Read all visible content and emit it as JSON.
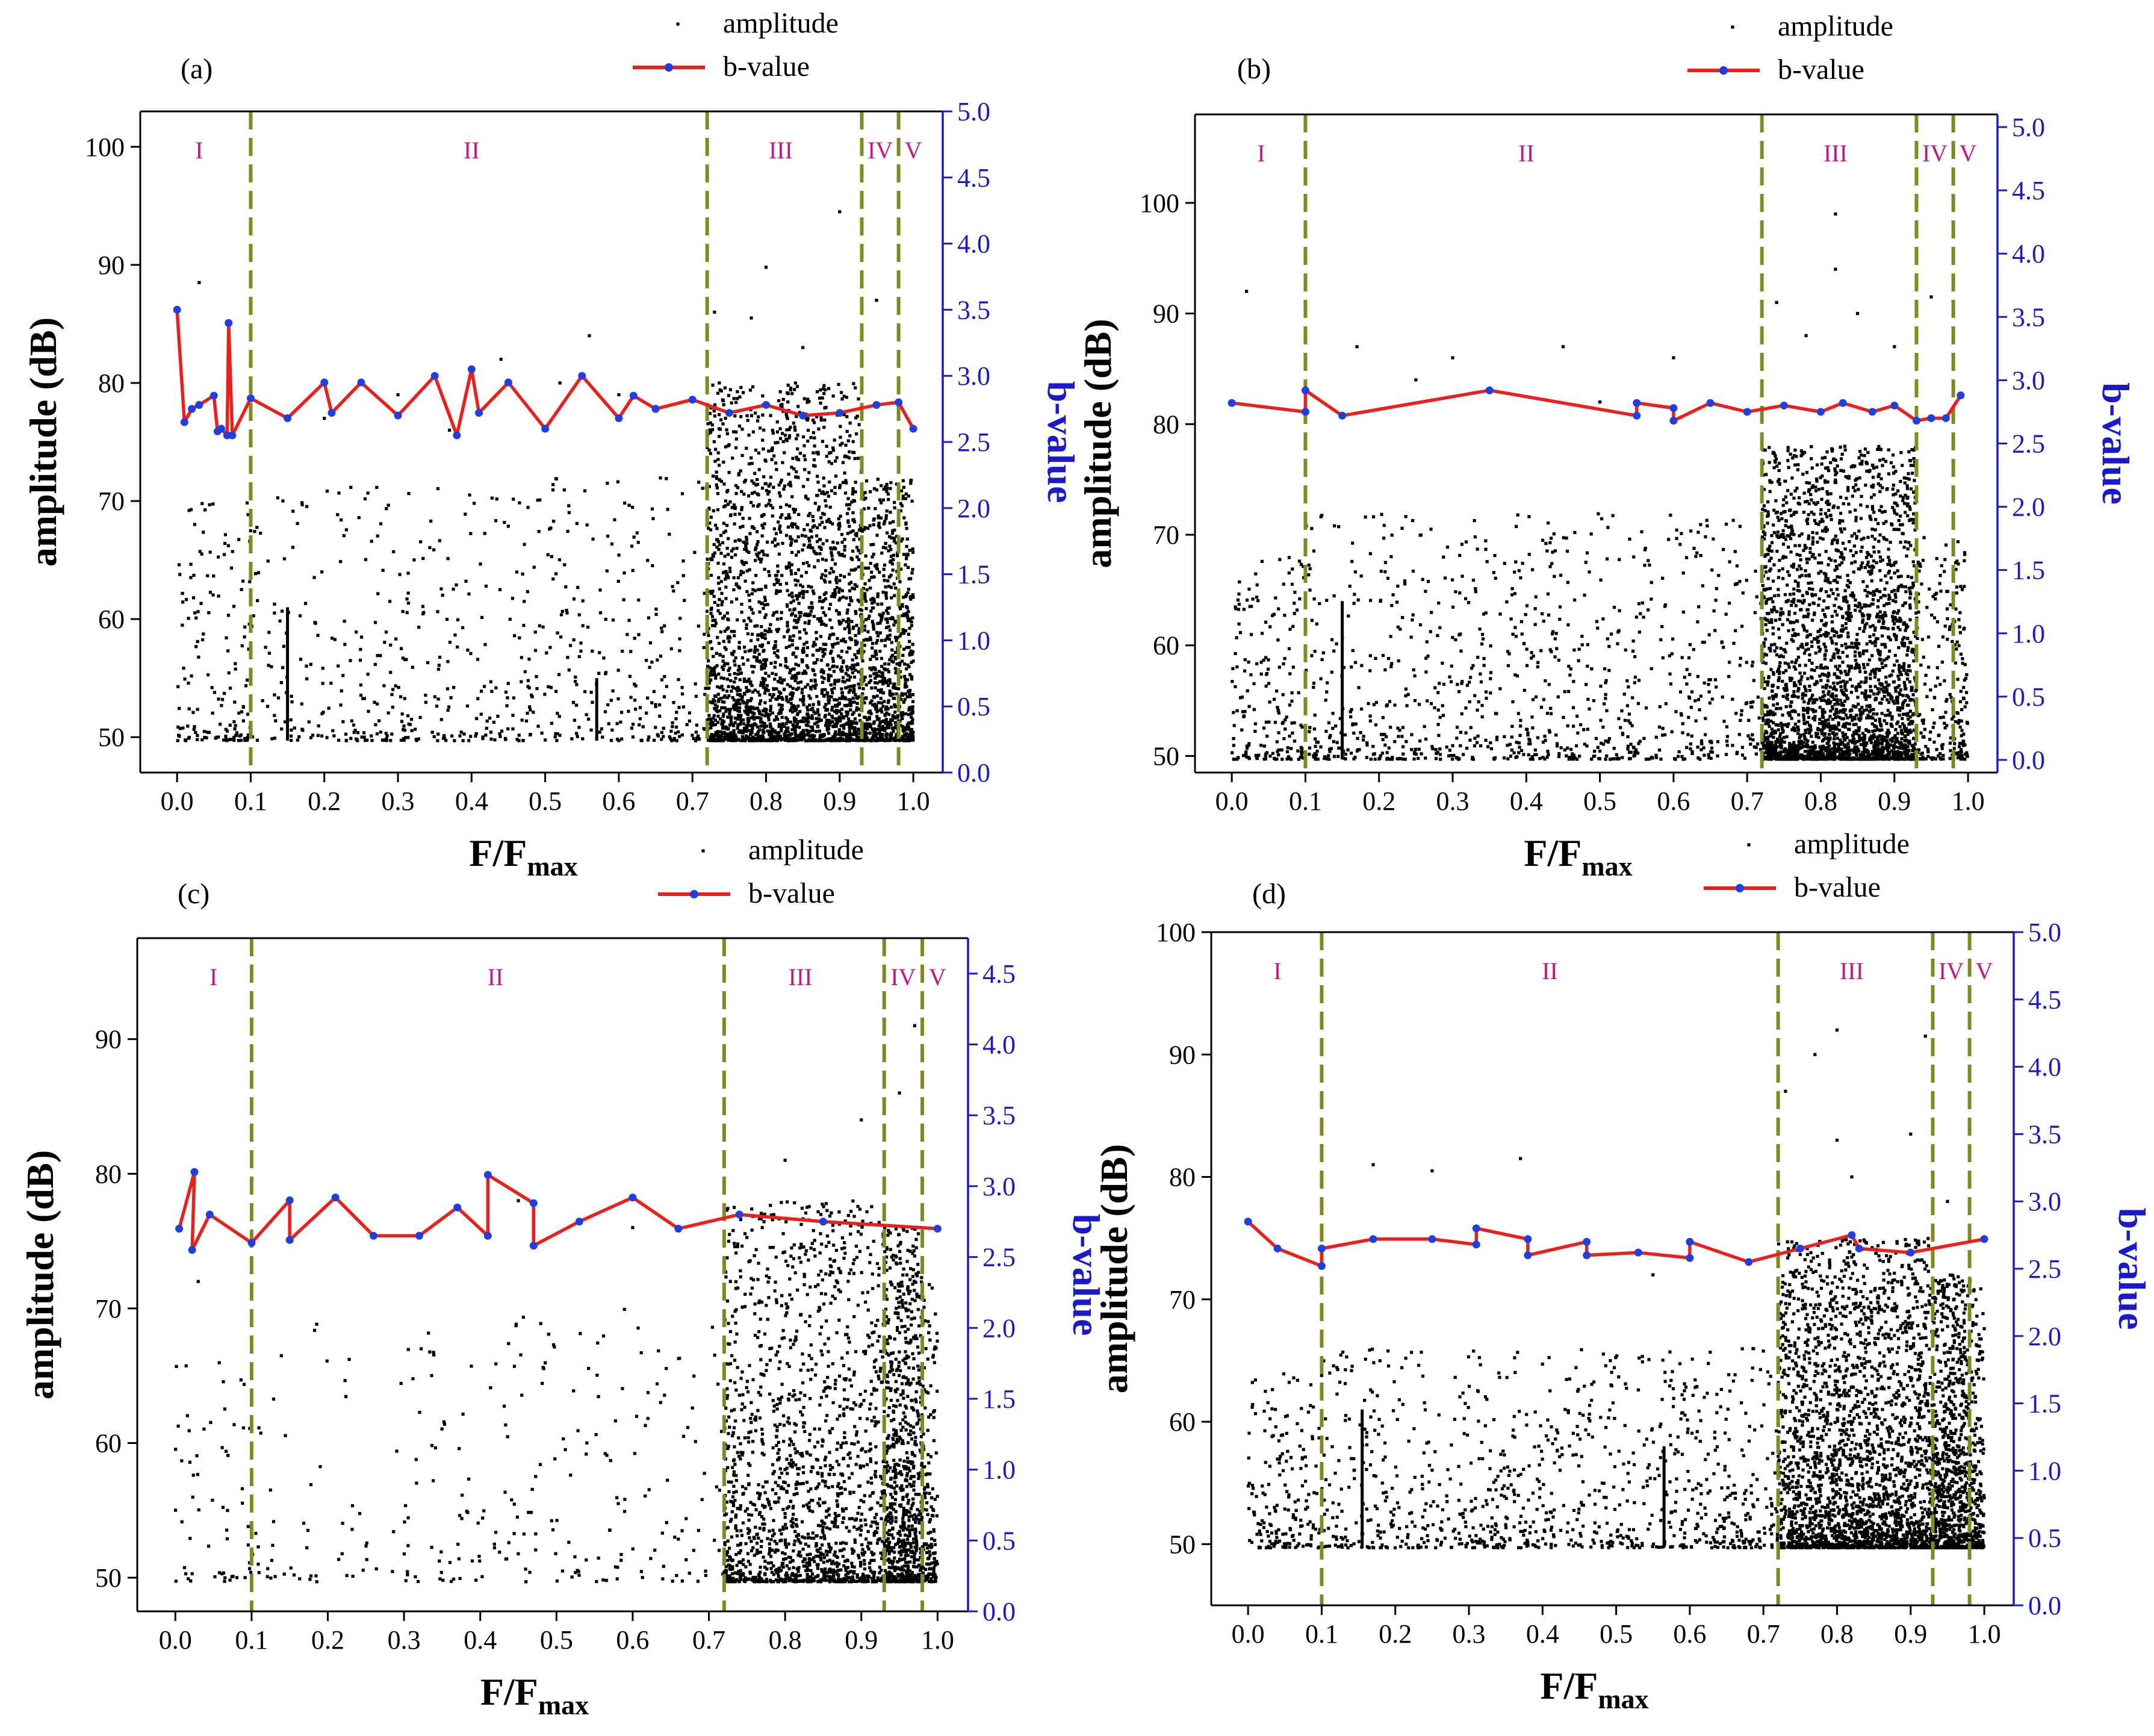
{
  "figure": {
    "colors": {
      "amplitude": "#000000",
      "b_line": "#e8211c",
      "b_marker": "#1f3fe0",
      "b_axis": "#1a1ac8",
      "divider": "#808a1e",
      "stage_label": "#c2178a"
    }
  },
  "chart_data": [
    {
      "panel_label": "(a)",
      "type": "scatter",
      "legend": [
        "amplitude",
        "b-value"
      ],
      "legend_position": "top-right, above plot",
      "xlabel": "F/F",
      "xlabel_sub": "max",
      "ylabel": "amplitude (dB)",
      "y2label": "b-value",
      "xlim": [
        -0.05,
        1.04
      ],
      "ylim": [
        47,
        103
      ],
      "y2lim": [
        0,
        5.0
      ],
      "xticks": [
        "0.0",
        "0.1",
        "0.2",
        "0.3",
        "0.4",
        "0.5",
        "0.6",
        "0.7",
        "0.8",
        "0.9",
        "1.0"
      ],
      "yticks": [
        "50",
        "60",
        "70",
        "80",
        "90",
        "100"
      ],
      "y2ticks": [
        "0.0",
        "0.5",
        "1.0",
        "1.5",
        "2.0",
        "2.5",
        "3.0",
        "3.5",
        "4.0",
        "4.5",
        "5.0"
      ],
      "dividers": [
        0.1,
        0.72,
        0.93,
        0.98
      ],
      "stages": [
        {
          "label": "I",
          "x": 0.03
        },
        {
          "label": "II",
          "x": 0.4
        },
        {
          "label": "III",
          "x": 0.82
        },
        {
          "label": "IV",
          "x": 0.955
        },
        {
          "label": "V",
          "x": 1.0
        }
      ],
      "b_value": {
        "x": [
          0.0,
          0.01,
          0.02,
          0.03,
          0.05,
          0.055,
          0.06,
          0.068,
          0.07,
          0.075,
          0.1,
          0.15,
          0.2,
          0.21,
          0.25,
          0.3,
          0.35,
          0.38,
          0.4,
          0.41,
          0.45,
          0.5,
          0.55,
          0.6,
          0.62,
          0.65,
          0.7,
          0.75,
          0.8,
          0.85,
          0.9,
          0.95,
          0.98,
          1.0
        ],
        "y": [
          3.5,
          2.65,
          2.75,
          2.78,
          2.85,
          2.58,
          2.6,
          2.55,
          3.4,
          2.55,
          2.83,
          2.68,
          2.95,
          2.72,
          2.95,
          2.7,
          3.0,
          2.55,
          3.05,
          2.72,
          2.95,
          2.6,
          3.0,
          2.68,
          2.85,
          2.75,
          2.82,
          2.72,
          2.78,
          2.7,
          2.72,
          2.78,
          2.8,
          2.6
        ]
      },
      "amplitude_density": [
        {
          "x": [
            0.0,
            0.1
          ],
          "n": 150,
          "ymax": 70
        },
        {
          "x": [
            0.1,
            0.72
          ],
          "n": 620,
          "ymax": 72
        },
        {
          "x": [
            0.72,
            0.93
          ],
          "n": 2300,
          "ymax": 80
        },
        {
          "x": [
            0.93,
            0.98
          ],
          "n": 520,
          "ymax": 72
        },
        {
          "x": [
            0.98,
            1.0
          ],
          "n": 220,
          "ymax": 72
        }
      ],
      "amplitude_outliers": [
        {
          "x": 0.03,
          "y": 88.5
        },
        {
          "x": 0.9,
          "y": 94.5
        },
        {
          "x": 0.8,
          "y": 89.8
        },
        {
          "x": 0.73,
          "y": 86
        },
        {
          "x": 0.95,
          "y": 87
        },
        {
          "x": 0.56,
          "y": 84
        },
        {
          "x": 0.44,
          "y": 82
        },
        {
          "x": 0.3,
          "y": 79
        },
        {
          "x": 0.52,
          "y": 80
        },
        {
          "x": 0.85,
          "y": 83
        },
        {
          "x": 0.78,
          "y": 85.5
        },
        {
          "x": 0.65,
          "y": 78
        },
        {
          "x": 0.6,
          "y": 79
        },
        {
          "x": 0.37,
          "y": 76
        },
        {
          "x": 0.2,
          "y": 77
        }
      ],
      "spike_lines": [
        {
          "x": 0.15,
          "ymax": 61
        },
        {
          "x": 0.57,
          "ymax": 55
        }
      ]
    },
    {
      "panel_label": "(b)",
      "type": "scatter",
      "legend": [
        "amplitude",
        "b-value"
      ],
      "legend_position": "top-right, above plot",
      "xlabel": "F/F",
      "xlabel_sub": "max",
      "ylabel": "amplitude (dB)",
      "y2label": "b-value",
      "xlim": [
        -0.05,
        1.04
      ],
      "ylim": [
        48.5,
        108
      ],
      "y2lim": [
        -0.1,
        5.1
      ],
      "xticks": [
        "0.0",
        "0.1",
        "0.2",
        "0.3",
        "0.4",
        "0.5",
        "0.6",
        "0.7",
        "0.8",
        "0.9",
        "1.0"
      ],
      "yticks": [
        "50",
        "60",
        "70",
        "80",
        "90",
        "100"
      ],
      "y2ticks": [
        "0.0",
        "0.5",
        "1.0",
        "1.5",
        "2.0",
        "2.5",
        "3.0",
        "3.5",
        "4.0",
        "4.5",
        "5.0"
      ],
      "dividers": [
        0.1,
        0.72,
        0.93,
        0.98
      ],
      "stages": [
        {
          "label": "I",
          "x": 0.04
        },
        {
          "label": "II",
          "x": 0.4
        },
        {
          "label": "III",
          "x": 0.82
        },
        {
          "label": "IV",
          "x": 0.955
        },
        {
          "label": "V",
          "x": 1.0
        }
      ],
      "b_value": {
        "x": [
          0.0,
          0.1,
          0.1,
          0.15,
          0.35,
          0.55,
          0.55,
          0.6,
          0.6,
          0.65,
          0.7,
          0.75,
          0.8,
          0.83,
          0.87,
          0.9,
          0.93,
          0.95,
          0.97,
          0.99
        ],
        "y": [
          2.82,
          2.75,
          2.92,
          2.72,
          2.92,
          2.72,
          2.82,
          2.78,
          2.68,
          2.82,
          2.75,
          2.8,
          2.75,
          2.82,
          2.75,
          2.8,
          2.68,
          2.7,
          2.7,
          2.88
        ]
      },
      "amplitude_density": [
        {
          "x": [
            0.0,
            0.1
          ],
          "n": 180,
          "ymax": 68
        },
        {
          "x": [
            0.1,
            0.72
          ],
          "n": 900,
          "ymax": 72
        },
        {
          "x": [
            0.72,
            0.93
          ],
          "n": 2600,
          "ymax": 78
        },
        {
          "x": [
            0.93,
            0.98
          ],
          "n": 130,
          "ymax": 70
        },
        {
          "x": [
            0.98,
            1.0
          ],
          "n": 90,
          "ymax": 70
        }
      ],
      "amplitude_outliers": [
        {
          "x": 0.02,
          "y": 92
        },
        {
          "x": 0.82,
          "y": 99
        },
        {
          "x": 0.82,
          "y": 94
        },
        {
          "x": 0.74,
          "y": 91
        },
        {
          "x": 0.78,
          "y": 88
        },
        {
          "x": 0.85,
          "y": 90
        },
        {
          "x": 0.9,
          "y": 87
        },
        {
          "x": 0.95,
          "y": 91.5
        },
        {
          "x": 0.17,
          "y": 87
        },
        {
          "x": 0.3,
          "y": 86
        },
        {
          "x": 0.45,
          "y": 87
        },
        {
          "x": 0.6,
          "y": 86
        },
        {
          "x": 0.25,
          "y": 84
        },
        {
          "x": 0.5,
          "y": 82
        }
      ],
      "spike_lines": [
        {
          "x": 0.15,
          "ymax": 64
        }
      ]
    },
    {
      "panel_label": "(c)",
      "type": "scatter",
      "legend": [
        "amplitude",
        "b-value"
      ],
      "legend_position": "top-right, above plot",
      "xlabel": "F/F",
      "xlabel_sub": "max",
      "ylabel": "amplitude (dB)",
      "y2label": "b-value",
      "xlim": [
        -0.05,
        1.04
      ],
      "ylim": [
        47.5,
        97.5
      ],
      "y2lim": [
        0,
        4.75
      ],
      "xticks": [
        "0.0",
        "0.1",
        "0.2",
        "0.3",
        "0.4",
        "0.5",
        "0.6",
        "0.7",
        "0.8",
        "0.9",
        "1.0"
      ],
      "yticks": [
        "50",
        "60",
        "70",
        "80",
        "90"
      ],
      "y2ticks": [
        "0.0",
        "0.5",
        "1.0",
        "1.5",
        "2.0",
        "2.5",
        "3.0",
        "3.5",
        "4.0",
        "4.5"
      ],
      "dividers": [
        0.1,
        0.72,
        0.93,
        0.98
      ],
      "stages": [
        {
          "label": "I",
          "x": 0.05
        },
        {
          "label": "II",
          "x": 0.42
        },
        {
          "label": "III",
          "x": 0.82
        },
        {
          "label": "IV",
          "x": 0.955
        },
        {
          "label": "V",
          "x": 1.0
        }
      ],
      "b_value": {
        "x": [
          0.005,
          0.025,
          0.022,
          0.045,
          0.1,
          0.15,
          0.15,
          0.21,
          0.26,
          0.32,
          0.37,
          0.41,
          0.41,
          0.47,
          0.47,
          0.53,
          0.6,
          0.66,
          0.74,
          0.85,
          1.0
        ],
        "y": [
          2.7,
          3.1,
          2.55,
          2.8,
          2.6,
          2.9,
          2.62,
          2.92,
          2.65,
          2.65,
          2.85,
          2.65,
          3.08,
          2.88,
          2.58,
          2.75,
          2.92,
          2.7,
          2.8,
          2.75,
          2.7
        ]
      },
      "amplitude_density": [
        {
          "x": [
            0.0,
            0.1
          ],
          "n": 60,
          "ymax": 66
        },
        {
          "x": [
            0.1,
            0.72
          ],
          "n": 260,
          "ymax": 70
        },
        {
          "x": [
            0.72,
            0.93
          ],
          "n": 1500,
          "ymax": 78
        },
        {
          "x": [
            0.93,
            0.98
          ],
          "n": 800,
          "ymax": 76
        },
        {
          "x": [
            0.98,
            1.0
          ],
          "n": 150,
          "ymax": 72
        }
      ],
      "amplitude_outliers": [
        {
          "x": 0.9,
          "y": 84
        },
        {
          "x": 0.95,
          "y": 86
        },
        {
          "x": 0.97,
          "y": 91
        },
        {
          "x": 0.8,
          "y": 81
        },
        {
          "x": 0.77,
          "y": 76
        },
        {
          "x": 0.6,
          "y": 76
        },
        {
          "x": 0.45,
          "y": 78
        },
        {
          "x": 0.03,
          "y": 72
        }
      ],
      "spike_lines": []
    },
    {
      "panel_label": "(d)",
      "type": "scatter",
      "legend": [
        "amplitude",
        "b-value"
      ],
      "legend_position": "top-right, above plot",
      "xlabel": "F/F",
      "xlabel_sub": "max",
      "ylabel": "amplitude (dB)",
      "y2label": "b-value",
      "xlim": [
        -0.05,
        1.04
      ],
      "ylim": [
        45,
        100
      ],
      "y2lim": [
        0,
        5.0
      ],
      "xticks": [
        "0.0",
        "0.1",
        "0.2",
        "0.3",
        "0.4",
        "0.5",
        "0.6",
        "0.7",
        "0.8",
        "0.9",
        "1.0"
      ],
      "yticks": [
        "50",
        "60",
        "70",
        "80",
        "90",
        "100"
      ],
      "y2ticks": [
        "0.0",
        "0.5",
        "1.0",
        "1.5",
        "2.0",
        "2.5",
        "3.0",
        "3.5",
        "4.0",
        "4.5",
        "5.0"
      ],
      "dividers": [
        0.1,
        0.72,
        0.93,
        0.98
      ],
      "stages": [
        {
          "label": "I",
          "x": 0.04
        },
        {
          "label": "II",
          "x": 0.41
        },
        {
          "label": "III",
          "x": 0.82
        },
        {
          "label": "IV",
          "x": 0.955
        },
        {
          "label": "V",
          "x": 1.0
        }
      ],
      "b_value": {
        "x": [
          0.0,
          0.04,
          0.1,
          0.1,
          0.17,
          0.25,
          0.31,
          0.31,
          0.38,
          0.38,
          0.46,
          0.46,
          0.53,
          0.6,
          0.6,
          0.68,
          0.75,
          0.82,
          0.83,
          0.9,
          1.0
        ],
        "y": [
          2.85,
          2.65,
          2.52,
          2.65,
          2.72,
          2.72,
          2.68,
          2.8,
          2.72,
          2.6,
          2.7,
          2.6,
          2.62,
          2.58,
          2.7,
          2.55,
          2.65,
          2.75,
          2.65,
          2.62,
          2.72
        ]
      },
      "amplitude_density": [
        {
          "x": [
            0.0,
            0.1
          ],
          "n": 180,
          "ymax": 64
        },
        {
          "x": [
            0.1,
            0.72
          ],
          "n": 900,
          "ymax": 66
        },
        {
          "x": [
            0.72,
            0.93
          ],
          "n": 2400,
          "ymax": 75
        },
        {
          "x": [
            0.93,
            0.98
          ],
          "n": 750,
          "ymax": 72
        },
        {
          "x": [
            0.98,
            1.0
          ],
          "n": 200,
          "ymax": 72
        }
      ],
      "amplitude_outliers": [
        {
          "x": 0.72,
          "y": 93
        },
        {
          "x": 0.77,
          "y": 90
        },
        {
          "x": 0.8,
          "y": 92
        },
        {
          "x": 0.92,
          "y": 91.5
        },
        {
          "x": 0.8,
          "y": 83
        },
        {
          "x": 0.82,
          "y": 80
        },
        {
          "x": 0.73,
          "y": 87
        },
        {
          "x": 0.37,
          "y": 81.5
        },
        {
          "x": 0.25,
          "y": 80.5
        },
        {
          "x": 0.17,
          "y": 81
        },
        {
          "x": 0.55,
          "y": 72
        },
        {
          "x": 0.9,
          "y": 83.5
        },
        {
          "x": 0.95,
          "y": 78
        }
      ],
      "spike_lines": [
        {
          "x": 0.155,
          "ymax": 61
        },
        {
          "x": 0.565,
          "ymax": 58
        }
      ]
    }
  ]
}
